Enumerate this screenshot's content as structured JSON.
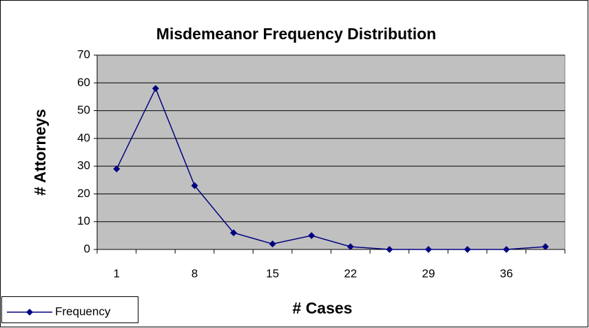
{
  "chart_data": {
    "type": "line",
    "title": "Misdemeanor Frequency Distribution",
    "x_label": "# Cases",
    "y_label": "# Attorneys",
    "categories": [
      "1",
      null,
      "8",
      null,
      "15",
      null,
      "22",
      null,
      "29",
      null,
      "36",
      null
    ],
    "series": [
      {
        "name": "Frequency",
        "color": "#000080",
        "values": [
          29,
          58,
          23,
          6,
          2,
          5,
          1,
          0,
          0,
          0,
          0,
          1
        ]
      }
    ],
    "ylim": [
      0,
      70
    ],
    "yticks": [
      0,
      10,
      20,
      30,
      40,
      50,
      60,
      70
    ],
    "grid": true,
    "legend": "bottom-left"
  }
}
